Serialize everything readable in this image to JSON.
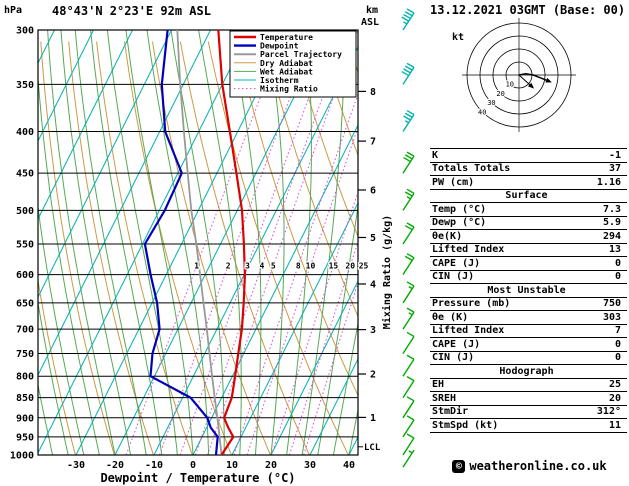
{
  "header": {
    "pressure_unit": "hPa",
    "station": "48°43'N 2°23'E 92m ASL",
    "alt_unit_line1": "km",
    "alt_unit_line2": "ASL",
    "datetime": "13.12.2021 03GMT (Base: 00)"
  },
  "axes": {
    "pressure_ticks": [
      300,
      350,
      400,
      450,
      500,
      550,
      600,
      650,
      700,
      750,
      800,
      850,
      900,
      950,
      1000
    ],
    "temp_ticks": [
      -30,
      -20,
      -10,
      0,
      10,
      20,
      30,
      40
    ],
    "x_label": "Dewpoint / Temperature (°C)",
    "mixing_label": "Mixing Ratio (g/kg)",
    "mixing_ratio_values": [
      1,
      2,
      3,
      4,
      5,
      8,
      10,
      15,
      20,
      25
    ],
    "km_ticks": [
      {
        "label": "8",
        "pressure": 357
      },
      {
        "label": "7",
        "pressure": 411
      },
      {
        "label": "6",
        "pressure": 472
      },
      {
        "label": "5",
        "pressure": 540
      },
      {
        "label": "4",
        "pressure": 616
      },
      {
        "label": "3",
        "pressure": 701
      },
      {
        "label": "2",
        "pressure": 795
      },
      {
        "label": "1",
        "pressure": 899
      }
    ],
    "lcl": {
      "label": "LCL",
      "pressure": 977
    }
  },
  "legend": {
    "items": [
      {
        "key": "temperature",
        "label": "Temperature",
        "color": "#dd0000",
        "width": 2.4
      },
      {
        "key": "dewpoint",
        "label": "Dewpoint",
        "color": "#0000bb",
        "width": 2.4
      },
      {
        "key": "parcel",
        "label": "Parcel Trajectory",
        "color": "#999999",
        "width": 2
      },
      {
        "key": "dry_adiabat",
        "label": "Dry Adiabat",
        "color": "#cc9944",
        "width": 1
      },
      {
        "key": "wet_adiabat",
        "label": "Wet Adiabat",
        "color": "#55aa55",
        "width": 1
      },
      {
        "key": "isotherm",
        "label": "Isotherm",
        "color": "#00b2b2",
        "width": 1
      },
      {
        "key": "mixing_ratio",
        "label": "Mixing Ratio",
        "color": "#dd44dd",
        "width": 1,
        "dash": "1.5,2.5"
      }
    ]
  },
  "chart_data": {
    "type": "skewt-log-p",
    "pressure_unit": "hPa",
    "temp_unit": "°C",
    "pressure_range": [
      300,
      1000
    ],
    "profile": {
      "pressure": [
        1000,
        950,
        925,
        900,
        850,
        800,
        750,
        700,
        650,
        600,
        550,
        500,
        450,
        400,
        350,
        300
      ],
      "temperature": [
        7.3,
        8.0,
        5.5,
        3.2,
        2.6,
        0.7,
        -1.4,
        -3.6,
        -6.5,
        -9.8,
        -14.0,
        -18.8,
        -25.0,
        -32.0,
        -40.0,
        -48.0
      ],
      "dewpoint": [
        5.9,
        4.0,
        1.0,
        -1.1,
        -8.0,
        -21.0,
        -23.4,
        -24.7,
        -28.7,
        -34.0,
        -39.4,
        -38.6,
        -39.0,
        -48.6,
        -55.5,
        -61.0
      ],
      "parcel": [
        7.3,
        4.5,
        3.0,
        1.5,
        -1.8,
        -5.2,
        -8.8,
        -12.6,
        -16.8,
        -21.3,
        -26.2,
        -31.8,
        -37.5,
        -43.8,
        -50.8,
        -58.5
      ]
    },
    "wind_barbs": [
      {
        "pressure": 300,
        "speed_kt": 45,
        "color": "#00b2b2"
      },
      {
        "pressure": 350,
        "speed_kt": 40,
        "color": "#00b2b2"
      },
      {
        "pressure": 400,
        "speed_kt": 35,
        "color": "#00b2b2"
      },
      {
        "pressure": 450,
        "speed_kt": 30,
        "color": "#00aa00"
      },
      {
        "pressure": 500,
        "speed_kt": 25,
        "color": "#00aa00"
      },
      {
        "pressure": 550,
        "speed_kt": 20,
        "color": "#00aa00"
      },
      {
        "pressure": 600,
        "speed_kt": 20,
        "color": "#00aa00"
      },
      {
        "pressure": 650,
        "speed_kt": 15,
        "color": "#00aa00"
      },
      {
        "pressure": 700,
        "speed_kt": 15,
        "color": "#00aa00"
      },
      {
        "pressure": 750,
        "speed_kt": 10,
        "color": "#00aa00"
      },
      {
        "pressure": 800,
        "speed_kt": 10,
        "color": "#00aa00"
      },
      {
        "pressure": 850,
        "speed_kt": 10,
        "color": "#00aa00"
      },
      {
        "pressure": 900,
        "speed_kt": 10,
        "color": "#00aa00"
      },
      {
        "pressure": 950,
        "speed_kt": 10,
        "color": "#00aa00"
      },
      {
        "pressure": 1000,
        "speed_kt": 10,
        "color": "#00aa00"
      },
      {
        "pressure": 1035,
        "speed_kt": 5,
        "color": "#00aa00"
      }
    ]
  },
  "hodograph": {
    "unit_label": "kt",
    "rings_kt": [
      10,
      20,
      30,
      40
    ],
    "trace_uv_kt": [
      [
        0,
        0
      ],
      [
        5,
        1
      ],
      [
        11,
        0
      ],
      [
        16,
        -2
      ],
      [
        21,
        -4
      ]
    ],
    "storm_motion": {
      "dir_deg": 312,
      "speed_kt": 11
    }
  },
  "panel": {
    "rows": [
      {
        "label": "K",
        "value": "-1"
      },
      {
        "label": "Totals Totals",
        "value": "37"
      },
      {
        "label": "PW (cm)",
        "value": "1.16"
      },
      {
        "label": "Surface"
      },
      {
        "label": "Temp (°C)",
        "value": "7.3"
      },
      {
        "label": "Dewp (°C)",
        "value": "5.9"
      },
      {
        "label": "θe(K)",
        "value": "294"
      },
      {
        "label": "Lifted Index",
        "value": "13"
      },
      {
        "label": "CAPE (J)",
        "value": "0"
      },
      {
        "label": "CIN (J)",
        "value": "0"
      },
      {
        "label": "Most Unstable"
      },
      {
        "label": "Pressure (mb)",
        "value": "750"
      },
      {
        "label": "θe (K)",
        "value": "303"
      },
      {
        "label": "Lifted Index",
        "value": "7"
      },
      {
        "label": "CAPE (J)",
        "value": "0"
      },
      {
        "label": "CIN (J)",
        "value": "0"
      },
      {
        "label": "Hodograph"
      },
      {
        "label": "EH",
        "value": "25"
      },
      {
        "label": "SREH",
        "value": "20"
      },
      {
        "label": "StmDir",
        "value": "312°"
      },
      {
        "label": "StmSpd (kt)",
        "value": "11"
      }
    ]
  },
  "footer": {
    "icon": "©",
    "credit": "weatheronline.co.uk"
  }
}
